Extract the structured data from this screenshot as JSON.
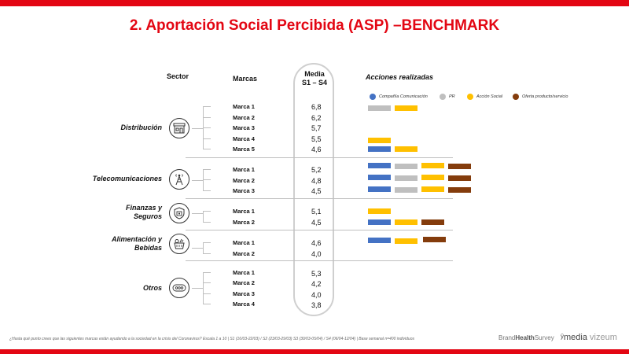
{
  "title": "2. Aportación Social Percibida (ASP) –BENCHMARK",
  "headers": {
    "sector": "Sector",
    "marcas": "Marcas",
    "media_line1": "Media",
    "media_line2": "S1 – S4",
    "acciones": "Acciones realizadas"
  },
  "legend": [
    {
      "label": "Compañía Comunicación",
      "color": "#4472c4"
    },
    {
      "label": "PR",
      "color": "#bfbfbf"
    },
    {
      "label": "Acción Social",
      "color": "#ffc000"
    },
    {
      "label": "Oferta producto/servicio",
      "color": "#843c0c"
    }
  ],
  "sectors": [
    {
      "name_line1": "Distribución",
      "name_line2": "",
      "icon": "store-icon",
      "brands": [
        {
          "name": "Marca 1",
          "value": "6,8",
          "actions": [
            "PR",
            "Acción Social"
          ]
        },
        {
          "name": "Marca 2",
          "value": "6,2",
          "actions": []
        },
        {
          "name": "Marca 3",
          "value": "5,7",
          "actions": []
        },
        {
          "name": "Marca 4",
          "value": "5,5",
          "actions": [
            "Acción Social"
          ]
        },
        {
          "name": "Marca 5",
          "value": "4,6",
          "actions": [
            "Compañía Comunicación",
            "Acción Social"
          ]
        }
      ]
    },
    {
      "name_line1": "Telecomunicaciones",
      "name_line2": "",
      "icon": "antenna-tower-icon",
      "brands": [
        {
          "name": "Marca 1",
          "value": "5,2",
          "actions": [
            "Compañía Comunicación",
            "PR",
            "Acción Social",
            "Oferta producto/servicio"
          ]
        },
        {
          "name": "Marca 2",
          "value": "4,8",
          "actions": [
            "Compañía Comunicación",
            "PR",
            "Acción Social",
            "Oferta producto/servicio"
          ]
        },
        {
          "name": "Marca 3",
          "value": "4,5",
          "actions": [
            "Compañía Comunicación",
            "PR",
            "Acción Social",
            "Oferta producto/servicio"
          ]
        }
      ]
    },
    {
      "name_line1": "Finanzas y",
      "name_line2": "Seguros",
      "icon": "shield-money-icon",
      "brands": [
        {
          "name": "Marca 1",
          "value": "5,1",
          "actions": [
            "Acción Social"
          ]
        },
        {
          "name": "Marca 2",
          "value": "4,5",
          "actions": [
            "Compañía Comunicación",
            "Acción Social",
            "Oferta producto/servicio"
          ]
        }
      ]
    },
    {
      "name_line1": "Alimentación y",
      "name_line2": "Bebidas",
      "icon": "food-basket-icon",
      "brands": [
        {
          "name": "Marca 1",
          "value": "4,6",
          "actions": [
            "Compañía Comunicación",
            "Acción Social",
            "Oferta producto/servicio"
          ]
        },
        {
          "name": "Marca 2",
          "value": "4,0",
          "actions": []
        }
      ]
    },
    {
      "name_line1": "Otros",
      "name_line2": "",
      "icon": "more-dots-icon",
      "brands": [
        {
          "name": "Marca 1",
          "value": "5,3",
          "actions": []
        },
        {
          "name": "Marca 2",
          "value": "4,2",
          "actions": []
        },
        {
          "name": "Marca 3",
          "value": "4,0",
          "actions": []
        },
        {
          "name": "Marca 4",
          "value": "3,8",
          "actions": []
        }
      ]
    }
  ],
  "footnote": "¿Hasta qué punto crees que las siguientes marcas están ayudando a la sociedad en la crisis del Coronavirus? Escala 1 a 10 | S1 (16/03-22/03) / S2 (23/03-29/03) S3 (30/03-05/04) / S4 (06/04-12/04) | Base semanal n=400 individuos",
  "logos": {
    "brandhealth_pre": "Brand",
    "brandhealth_bold": "Health",
    "brandhealth_post": "Survey",
    "media": "media",
    "vizeum": "vizeum"
  }
}
